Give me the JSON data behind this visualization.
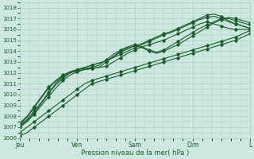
{
  "title": "",
  "xlabel": "Pression niveau de la mer( hPa )",
  "ylabel": "",
  "background_color": "#cce8e0",
  "grid_color": "#aaccbb",
  "line_color": "#1a5c2a",
  "ylim": [
    1006,
    1018.5
  ],
  "xlim": [
    0,
    96
  ],
  "yticks": [
    1006,
    1007,
    1008,
    1009,
    1010,
    1011,
    1012,
    1013,
    1014,
    1015,
    1016,
    1017,
    1018
  ],
  "day_labels": [
    "Jeu",
    "Ven",
    "Sam",
    "Dim",
    "L"
  ],
  "day_positions": [
    0,
    24,
    48,
    72,
    96
  ],
  "series": [
    {
      "x": [
        0,
        3,
        6,
        9,
        12,
        15,
        18,
        21,
        24,
        27,
        30,
        33,
        36,
        39,
        42,
        45,
        48,
        51,
        54,
        57,
        60,
        63,
        66,
        69,
        72,
        75,
        78,
        81,
        84,
        87,
        90,
        93,
        96
      ],
      "y": [
        1007.0,
        1007.5,
        1008.2,
        1009.0,
        1009.8,
        1010.6,
        1011.3,
        1011.8,
        1012.1,
        1012.3,
        1012.4,
        1012.5,
        1012.6,
        1013.0,
        1013.4,
        1013.8,
        1014.1,
        1014.4,
        1014.6,
        1014.8,
        1015.0,
        1015.3,
        1015.6,
        1015.9,
        1016.2,
        1016.5,
        1016.7,
        1016.5,
        1016.3,
        1016.1,
        1016.0,
        1016.0,
        1016.0
      ]
    },
    {
      "x": [
        0,
        3,
        6,
        9,
        12,
        15,
        18,
        21,
        24,
        27,
        30,
        33,
        36,
        39,
        42,
        45,
        48,
        51,
        54,
        57,
        60,
        63,
        66,
        69,
        72,
        75,
        78,
        81,
        84,
        87,
        90,
        93,
        96
      ],
      "y": [
        1007.1,
        1007.6,
        1008.3,
        1009.2,
        1010.1,
        1010.9,
        1011.5,
        1012.0,
        1012.3,
        1012.5,
        1012.7,
        1012.9,
        1013.1,
        1013.5,
        1013.9,
        1014.2,
        1014.5,
        1014.7,
        1015.0,
        1015.3,
        1015.6,
        1015.8,
        1016.1,
        1016.4,
        1016.7,
        1017.0,
        1017.3,
        1017.4,
        1017.2,
        1016.8,
        1016.5,
        1016.3,
        1016.1
      ]
    },
    {
      "x": [
        0,
        3,
        6,
        9,
        12,
        15,
        18,
        21,
        24,
        27,
        30,
        33,
        36,
        39,
        42,
        45,
        48,
        51,
        54,
        57,
        60,
        63,
        66,
        69,
        72,
        75,
        78,
        81,
        84,
        87,
        90,
        93,
        96
      ],
      "y": [
        1007.2,
        1007.7,
        1008.5,
        1009.3,
        1010.2,
        1011.0,
        1011.7,
        1012.1,
        1012.3,
        1012.5,
        1012.7,
        1012.9,
        1013.1,
        1013.4,
        1013.7,
        1014.0,
        1014.3,
        1014.6,
        1014.9,
        1015.2,
        1015.5,
        1015.7,
        1016.0,
        1016.3,
        1016.6,
        1016.9,
        1017.1,
        1017.2,
        1017.0,
        1016.7,
        1016.5,
        1016.3,
        1016.1
      ]
    },
    {
      "x": [
        0,
        3,
        6,
        9,
        12,
        15,
        18,
        21,
        24,
        27,
        30,
        33,
        36,
        39,
        42,
        45,
        48,
        51,
        54,
        57,
        60,
        63,
        66,
        69,
        72,
        75,
        78,
        81,
        84,
        87,
        90,
        93,
        96
      ],
      "y": [
        1007.3,
        1007.9,
        1008.8,
        1009.7,
        1010.6,
        1011.2,
        1011.7,
        1012.0,
        1012.2,
        1012.3,
        1012.4,
        1012.5,
        1013.0,
        1013.5,
        1014.0,
        1014.3,
        1014.5,
        1014.3,
        1014.0,
        1013.8,
        1014.0,
        1014.3,
        1014.6,
        1015.0,
        1015.4,
        1015.8,
        1016.2,
        1016.6,
        1016.9,
        1017.1,
        1017.0,
        1016.8,
        1016.6
      ]
    },
    {
      "x": [
        0,
        3,
        6,
        9,
        12,
        15,
        18,
        21,
        24,
        27,
        30,
        33,
        36,
        39,
        42,
        45,
        48,
        51,
        54,
        57,
        60,
        63,
        66,
        69,
        72,
        75,
        78,
        81,
        84,
        87,
        90,
        93,
        96
      ],
      "y": [
        1007.4,
        1008.0,
        1008.9,
        1009.8,
        1010.7,
        1011.3,
        1011.8,
        1012.1,
        1012.3,
        1012.4,
        1012.5,
        1012.7,
        1013.2,
        1013.7,
        1014.1,
        1014.4,
        1014.6,
        1014.4,
        1014.1,
        1013.9,
        1014.1,
        1014.5,
        1014.9,
        1015.3,
        1015.7,
        1016.1,
        1016.4,
        1016.7,
        1017.0,
        1017.0,
        1016.8,
        1016.6,
        1016.4
      ]
    },
    {
      "x": [
        0,
        3,
        6,
        9,
        12,
        15,
        18,
        21,
        24,
        27,
        30,
        33,
        36,
        39,
        42,
        45,
        48,
        51,
        54,
        57,
        60,
        63,
        66,
        69,
        72,
        75,
        78,
        81,
        84,
        87,
        90,
        93,
        96
      ],
      "y": [
        1006.2,
        1006.5,
        1007.0,
        1007.5,
        1008.0,
        1008.5,
        1009.0,
        1009.5,
        1010.0,
        1010.5,
        1011.0,
        1011.2,
        1011.4,
        1011.6,
        1011.8,
        1012.0,
        1012.2,
        1012.4,
        1012.6,
        1012.8,
        1013.0,
        1013.2,
        1013.4,
        1013.6,
        1013.8,
        1014.0,
        1014.2,
        1014.4,
        1014.6,
        1014.8,
        1015.0,
        1015.3,
        1015.6
      ]
    },
    {
      "x": [
        0,
        3,
        6,
        9,
        12,
        15,
        18,
        21,
        24,
        27,
        30,
        33,
        36,
        39,
        42,
        45,
        48,
        51,
        54,
        57,
        60,
        63,
        66,
        69,
        72,
        75,
        78,
        81,
        84,
        87,
        90,
        93,
        96
      ],
      "y": [
        1006.5,
        1007.0,
        1007.5,
        1008.0,
        1008.5,
        1009.0,
        1009.5,
        1010.0,
        1010.5,
        1011.0,
        1011.3,
        1011.5,
        1011.7,
        1011.9,
        1012.1,
        1012.3,
        1012.5,
        1012.7,
        1012.9,
        1013.1,
        1013.3,
        1013.5,
        1013.7,
        1013.9,
        1014.1,
        1014.3,
        1014.5,
        1014.7,
        1014.9,
        1015.1,
        1015.3,
        1015.6,
        1015.9
      ]
    }
  ]
}
